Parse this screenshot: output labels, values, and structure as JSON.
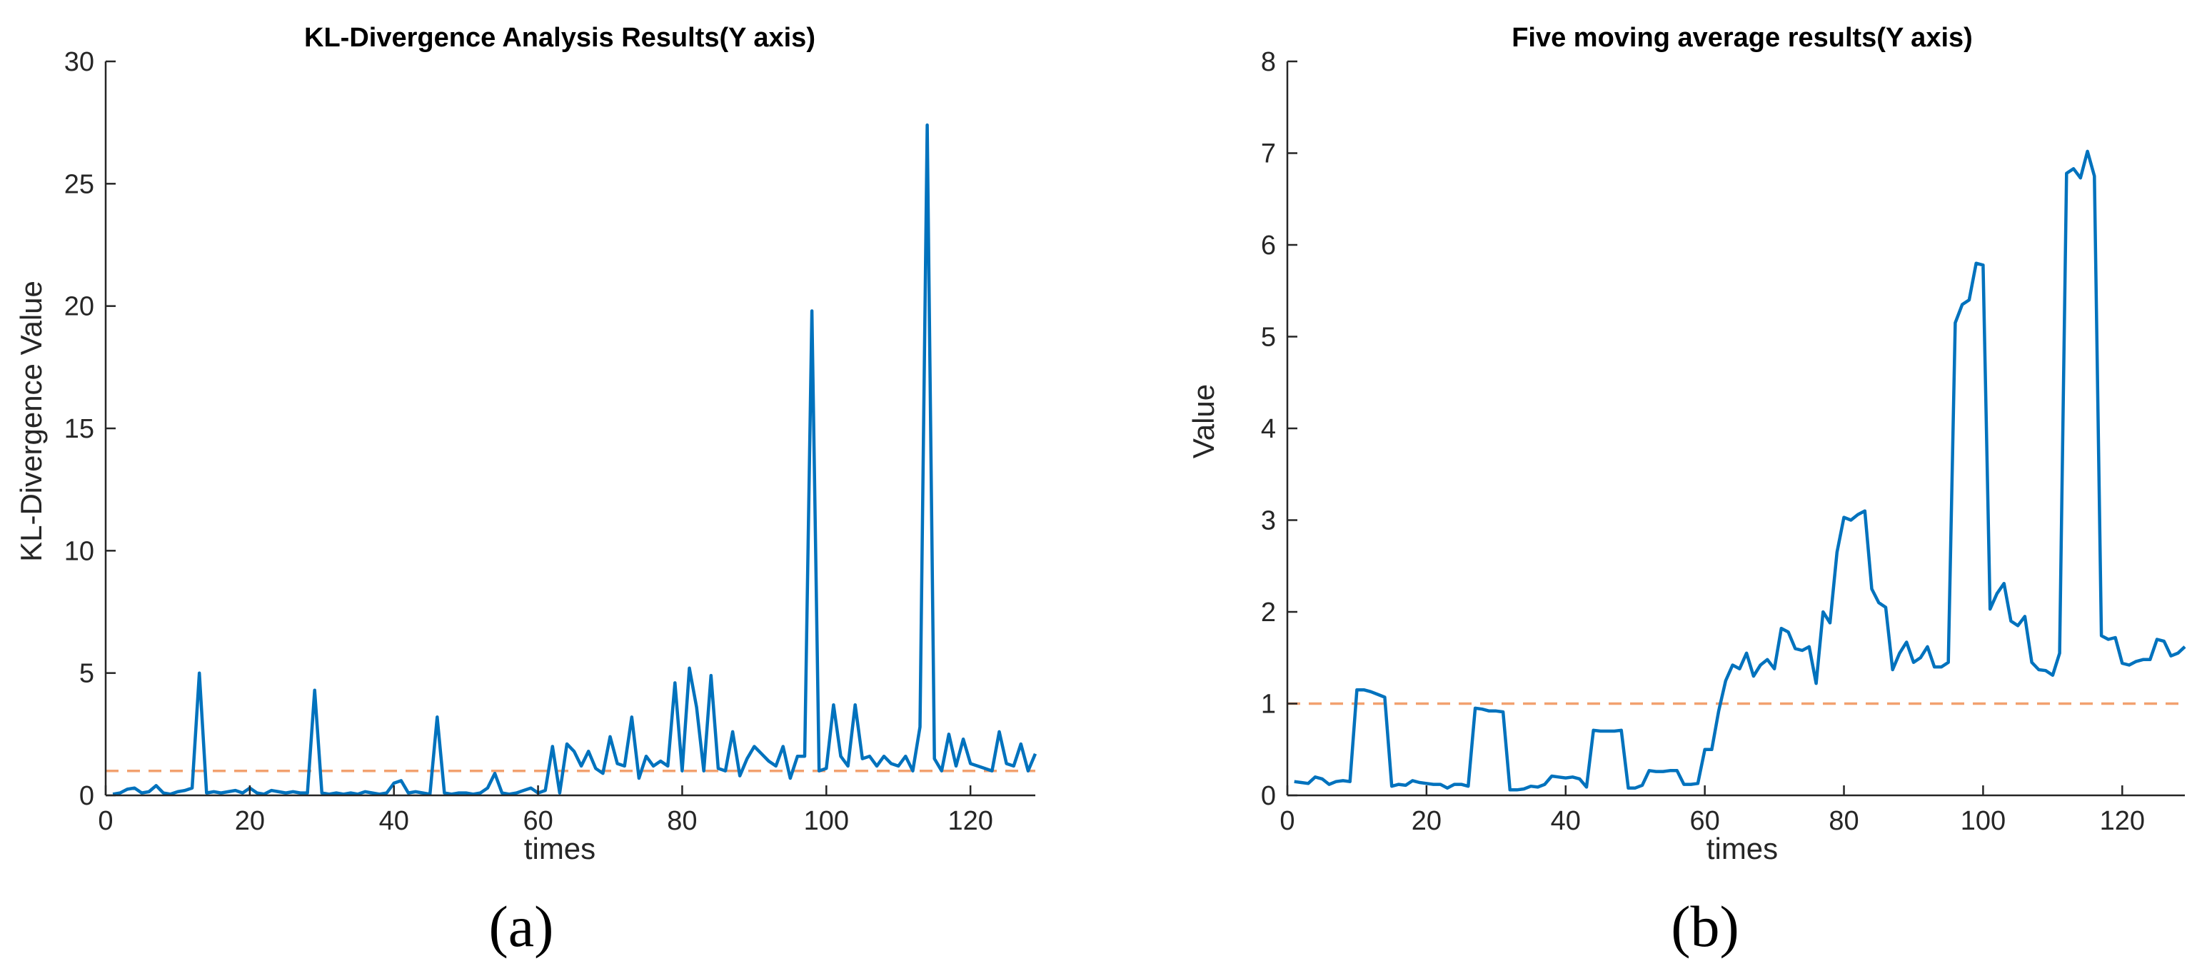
{
  "figure_labels": [
    "(a)",
    "(b)"
  ],
  "chart_data": [
    {
      "type": "line",
      "title": "KL-Divergence Analysis Results(Y axis)",
      "xlabel": "times",
      "ylabel": "KL-Divergence Value",
      "xlim": [
        0,
        129
      ],
      "ylim": [
        0,
        30
      ],
      "xticks": [
        0,
        20,
        40,
        60,
        80,
        100,
        120
      ],
      "yticks": [
        0,
        5,
        10,
        15,
        20,
        25,
        30
      ],
      "grid": false,
      "threshold": 1,
      "colors": {
        "series": "#0072BD",
        "threshold": "#F2A16F",
        "axis": "#262626"
      },
      "series": [
        {
          "x_start": 1,
          "values": [
            0.05,
            0.1,
            0.25,
            0.3,
            0.1,
            0.15,
            0.4,
            0.1,
            0.05,
            0.15,
            0.2,
            0.3,
            5.0,
            0.1,
            0.15,
            0.1,
            0.15,
            0.2,
            0.1,
            0.3,
            0.1,
            0.05,
            0.2,
            0.15,
            0.1,
            0.15,
            0.1,
            0.1,
            4.3,
            0.1,
            0.05,
            0.1,
            0.05,
            0.1,
            0.05,
            0.15,
            0.1,
            0.05,
            0.1,
            0.5,
            0.6,
            0.1,
            0.15,
            0.1,
            0.05,
            3.2,
            0.1,
            0.05,
            0.1,
            0.1,
            0.05,
            0.1,
            0.3,
            0.9,
            0.1,
            0.05,
            0.1,
            0.2,
            0.3,
            0.1,
            0.2,
            2.0,
            0.1,
            2.1,
            1.8,
            1.2,
            1.8,
            1.1,
            0.9,
            2.4,
            1.3,
            1.2,
            3.2,
            0.7,
            1.6,
            1.2,
            1.4,
            1.2,
            4.6,
            1.0,
            5.2,
            3.6,
            1.0,
            4.9,
            1.1,
            1.0,
            2.6,
            0.8,
            1.5,
            2.0,
            1.7,
            1.4,
            1.2,
            2.0,
            0.7,
            1.6,
            1.6,
            19.8,
            1.0,
            1.1,
            3.7,
            1.6,
            1.2,
            3.7,
            1.5,
            1.6,
            1.2,
            1.6,
            1.3,
            1.2,
            1.6,
            1.0,
            2.8,
            27.4,
            1.5,
            1.0,
            2.5,
            1.2,
            2.3,
            1.3,
            1.2,
            1.1,
            1.0,
            2.6,
            1.3,
            1.2,
            2.1,
            1.0,
            1.7
          ]
        }
      ]
    },
    {
      "type": "line",
      "title": "Five moving average results(Y axis)",
      "xlabel": "times",
      "ylabel": "Value",
      "xlim": [
        0,
        129
      ],
      "ylim": [
        0,
        8
      ],
      "xticks": [
        0,
        20,
        40,
        60,
        80,
        100,
        120
      ],
      "yticks": [
        0,
        1,
        2,
        3,
        4,
        5,
        6,
        7,
        8
      ],
      "grid": false,
      "threshold": 1,
      "colors": {
        "series": "#0072BD",
        "threshold": "#F2A16F",
        "axis": "#262626"
      },
      "series": [
        {
          "x_start": 1,
          "values": [
            0.15,
            0.14,
            0.13,
            0.2,
            0.18,
            0.12,
            0.15,
            0.16,
            0.15,
            1.15,
            1.15,
            1.13,
            1.1,
            1.07,
            0.1,
            0.12,
            0.11,
            0.16,
            0.14,
            0.13,
            0.12,
            0.12,
            0.08,
            0.12,
            0.12,
            0.1,
            0.95,
            0.94,
            0.92,
            0.92,
            0.91,
            0.06,
            0.06,
            0.07,
            0.1,
            0.09,
            0.12,
            0.21,
            0.2,
            0.19,
            0.2,
            0.18,
            0.09,
            0.71,
            0.7,
            0.7,
            0.7,
            0.71,
            0.08,
            0.08,
            0.11,
            0.27,
            0.26,
            0.26,
            0.27,
            0.27,
            0.12,
            0.12,
            0.13,
            0.5,
            0.5,
            0.92,
            1.25,
            1.42,
            1.38,
            1.55,
            1.3,
            1.42,
            1.48,
            1.38,
            1.82,
            1.78,
            1.6,
            1.58,
            1.62,
            1.22,
            2.0,
            1.88,
            2.65,
            3.03,
            3.0,
            3.06,
            3.1,
            2.25,
            2.1,
            2.05,
            1.37,
            1.55,
            1.67,
            1.45,
            1.5,
            1.62,
            1.4,
            1.4,
            1.45,
            5.15,
            5.35,
            5.4,
            5.8,
            5.78,
            2.03,
            2.2,
            2.31,
            1.9,
            1.85,
            1.95,
            1.45,
            1.37,
            1.36,
            1.31,
            1.55,
            6.78,
            6.83,
            6.73,
            7.02,
            6.75,
            1.74,
            1.7,
            1.72,
            1.44,
            1.42,
            1.46,
            1.48,
            1.48,
            1.7,
            1.68,
            1.52,
            1.55,
            1.62
          ]
        }
      ]
    }
  ]
}
